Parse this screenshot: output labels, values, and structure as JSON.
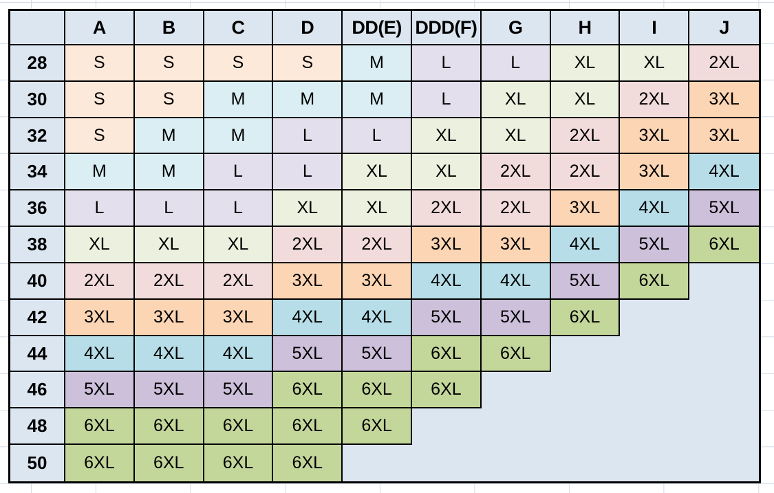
{
  "page": {
    "background": "#ffffff",
    "gridline_color": "#d3dae6"
  },
  "chart_data": {
    "type": "table",
    "description": "Bra band/cup size to garment size conversion chart",
    "corner_label": "",
    "columns": [
      "A",
      "B",
      "C",
      "D",
      "DD(E)",
      "DDD(F)",
      "G",
      "H",
      "I",
      "J"
    ],
    "rows": [
      {
        "band": "28",
        "sizes": [
          "S",
          "S",
          "S",
          "S",
          "M",
          "L",
          "L",
          "XL",
          "XL",
          "2XL"
        ]
      },
      {
        "band": "30",
        "sizes": [
          "S",
          "S",
          "M",
          "M",
          "M",
          "L",
          "XL",
          "XL",
          "2XL",
          "3XL"
        ]
      },
      {
        "band": "32",
        "sizes": [
          "S",
          "M",
          "M",
          "L",
          "L",
          "XL",
          "XL",
          "2XL",
          "3XL",
          "3XL"
        ]
      },
      {
        "band": "34",
        "sizes": [
          "M",
          "M",
          "L",
          "L",
          "XL",
          "XL",
          "2XL",
          "2XL",
          "3XL",
          "4XL"
        ]
      },
      {
        "band": "36",
        "sizes": [
          "L",
          "L",
          "L",
          "XL",
          "XL",
          "2XL",
          "2XL",
          "3XL",
          "4XL",
          "5XL"
        ]
      },
      {
        "band": "38",
        "sizes": [
          "XL",
          "XL",
          "XL",
          "2XL",
          "2XL",
          "3XL",
          "3XL",
          "4XL",
          "5XL",
          "6XL"
        ]
      },
      {
        "band": "40",
        "sizes": [
          "2XL",
          "2XL",
          "2XL",
          "3XL",
          "3XL",
          "4XL",
          "4XL",
          "5XL",
          "6XL",
          null
        ]
      },
      {
        "band": "42",
        "sizes": [
          "3XL",
          "3XL",
          "3XL",
          "4XL",
          "4XL",
          "5XL",
          "5XL",
          "6XL",
          null,
          null
        ]
      },
      {
        "band": "44",
        "sizes": [
          "4XL",
          "4XL",
          "4XL",
          "5XL",
          "5XL",
          "6XL",
          "6XL",
          null,
          null,
          null
        ]
      },
      {
        "band": "46",
        "sizes": [
          "5XL",
          "5XL",
          "5XL",
          "6XL",
          "6XL",
          "6XL",
          null,
          null,
          null,
          null
        ]
      },
      {
        "band": "48",
        "sizes": [
          "6XL",
          "6XL",
          "6XL",
          "6XL",
          "6XL",
          null,
          null,
          null,
          null,
          null
        ]
      },
      {
        "band": "50",
        "sizes": [
          "6XL",
          "6XL",
          "6XL",
          "6XL",
          null,
          null,
          null,
          null,
          null,
          null
        ]
      }
    ],
    "size_colors": {
      "S": "#fde9d9",
      "M": "#daeef3",
      "L": "#e4dfec",
      "XL": "#ebf1de",
      "2XL": "#f2dcdb",
      "3XL": "#fcd5b4",
      "4XL": "#b7dee8",
      "5XL": "#ccc0da",
      "6XL": "#c4d79b"
    },
    "header_bg": "#dce6f1",
    "empty_bg": "#dce6f1",
    "border_color": "#000000",
    "layout": {
      "grid": "on",
      "header_row": "bold",
      "row_label_column": "bold"
    }
  }
}
